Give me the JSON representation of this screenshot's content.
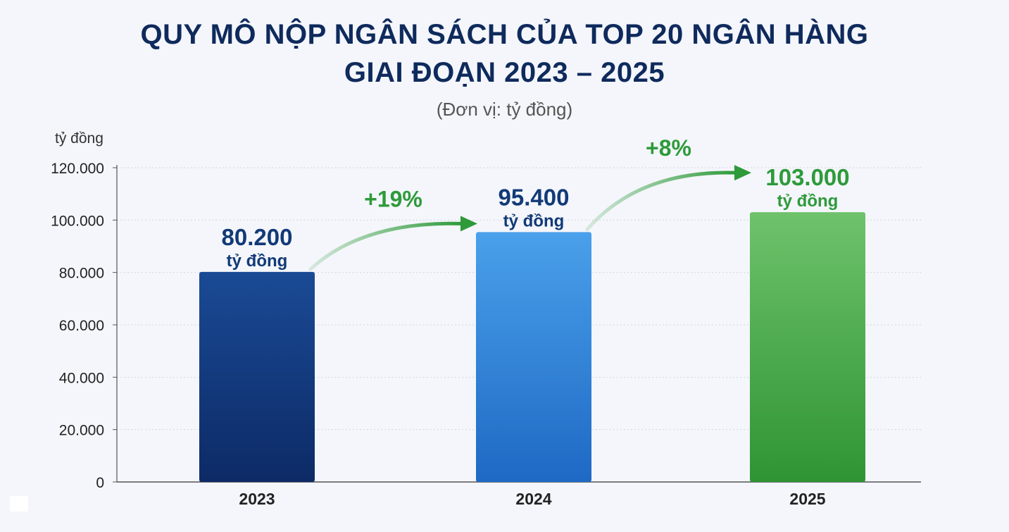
{
  "title_lines": [
    "QUY MÔ NỘP NGÂN SÁCH CỦA TOP 20 NGÂN HÀNG",
    "GIAI ĐOẠN 2023 – 2025"
  ],
  "subtitle": "(Đơn vị: tỷ đồng)",
  "chart_data": {
    "type": "bar",
    "title": "QUY MÔ NỘP NGÂN SÁCH CỦA TOP 20 NGÂN HÀNG GIAI ĐOẠN 2023 – 2025",
    "subtitle": "(Đơn vị: tỷ đồng)",
    "ylabel": "tỷ đồng",
    "xlabel": "",
    "categories": [
      "2023",
      "2024",
      "2025"
    ],
    "values": [
      80200,
      95400,
      103000
    ],
    "value_labels": [
      "80.200",
      "95.400",
      "103.000"
    ],
    "unit_label": "tỷ đồng",
    "ylim": [
      0,
      120000
    ],
    "yticks": [
      0,
      20000,
      40000,
      60000,
      80000,
      100000,
      120000
    ],
    "ytick_labels": [
      "0",
      "20.000",
      "40.000",
      "60.000",
      "80.000",
      "100.000",
      "120.000"
    ],
    "grid": true,
    "bar_colors": [
      {
        "top": "#1a4a95",
        "bottom": "#0d2a66",
        "label": "#123a78"
      },
      {
        "top": "#4aa0ea",
        "bottom": "#1e69c4",
        "label": "#123a78"
      },
      {
        "top": "#6ec26b",
        "bottom": "#2f9434",
        "label": "#2e9a3a"
      }
    ],
    "growth_annotations": [
      {
        "from": "2023",
        "to": "2024",
        "label": "+19%"
      },
      {
        "from": "2024",
        "to": "2025",
        "label": "+8%"
      }
    ],
    "annotation_color": "#2e9a3a"
  }
}
